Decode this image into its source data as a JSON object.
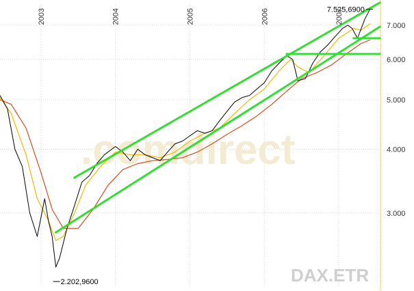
{
  "chart_data": {
    "type": "line",
    "title": "",
    "xlabel": "",
    "ylabel": "",
    "x_tick_labels": [
      "2003",
      "2004",
      "2005",
      "2006",
      "2007"
    ],
    "y_tick_labels": [
      "3.000",
      "4.000",
      "5.000",
      "6.000",
      "7.000"
    ],
    "y_ticks": [
      3000,
      4000,
      5000,
      6000,
      7000
    ],
    "ylim": [
      2150,
      7700
    ],
    "xlim": [
      2002.45,
      2007.55
    ],
    "y_scale": "log",
    "grid": true,
    "legend": "none",
    "annotations": {
      "max_label": "7.525,6900",
      "min_label": "2.202,9600",
      "max_value": 7525.69,
      "min_value": 2202.96,
      "watermark_source": "DAX.ETR",
      "watermark_brand": ".comdirect"
    },
    "series": [
      {
        "kind": "price",
        "color": "#000000",
        "x": [
          2002.45,
          2002.55,
          2002.65,
          2002.75,
          2002.85,
          2002.95,
          2003.05,
          2003.1,
          2003.15,
          2003.2,
          2003.25,
          2003.35,
          2003.45,
          2003.55,
          2003.65,
          2003.75,
          2003.85,
          2003.95,
          2004.0,
          2004.1,
          2004.2,
          2004.3,
          2004.4,
          2004.5,
          2004.6,
          2004.7,
          2004.8,
          2004.9,
          2005.0,
          2005.1,
          2005.2,
          2005.3,
          2005.4,
          2005.5,
          2005.6,
          2005.7,
          2005.8,
          2005.9,
          2006.0,
          2006.1,
          2006.2,
          2006.3,
          2006.38,
          2006.45,
          2006.55,
          2006.65,
          2006.75,
          2006.85,
          2006.95,
          2007.05,
          2007.12,
          2007.18,
          2007.25,
          2007.35,
          2007.42
        ],
        "y": [
          5100,
          4800,
          4000,
          3700,
          3000,
          2700,
          3200,
          2900,
          2700,
          2350,
          2450,
          2800,
          3100,
          3450,
          3550,
          3750,
          3900,
          4000,
          4050,
          3950,
          3800,
          4000,
          3900,
          3850,
          3800,
          3950,
          4100,
          4150,
          4250,
          4350,
          4300,
          4350,
          4550,
          4750,
          4950,
          5050,
          5100,
          5250,
          5400,
          5700,
          5900,
          6100,
          6000,
          5450,
          5500,
          5900,
          6200,
          6400,
          6650,
          6900,
          7000,
          6900,
          6600,
          7200,
          7530
        ]
      },
      {
        "kind": "moving-average-short",
        "color": "#f0b800",
        "x": [
          2002.45,
          2002.6,
          2002.8,
          2002.95,
          2003.1,
          2003.2,
          2003.3,
          2003.45,
          2003.6,
          2003.8,
          2004.0,
          2004.2,
          2004.4,
          2004.6,
          2004.8,
          2005.0,
          2005.2,
          2005.4,
          2005.6,
          2005.8,
          2006.0,
          2006.2,
          2006.35,
          2006.45,
          2006.6,
          2006.8,
          2007.0,
          2007.2,
          2007.3,
          2007.42
        ],
        "y": [
          5050,
          4700,
          3900,
          3200,
          2900,
          2650,
          2700,
          3000,
          3400,
          3700,
          3950,
          3900,
          3900,
          3850,
          3950,
          4150,
          4300,
          4400,
          4700,
          5000,
          5250,
          5700,
          6000,
          5800,
          5650,
          6100,
          6600,
          6900,
          6850,
          7050
        ]
      },
      {
        "kind": "moving-average-long",
        "color": "#d84a1a",
        "x": [
          2002.45,
          2002.6,
          2002.8,
          2003.0,
          2003.15,
          2003.3,
          2003.5,
          2003.7,
          2003.9,
          2004.1,
          2004.3,
          2004.5,
          2004.7,
          2004.9,
          2005.1,
          2005.3,
          2005.5,
          2005.7,
          2005.9,
          2006.1,
          2006.3,
          2006.5,
          2006.7,
          2006.9,
          2007.1,
          2007.3,
          2007.42
        ],
        "y": [
          5000,
          4900,
          4400,
          3600,
          3050,
          2800,
          2800,
          3050,
          3400,
          3650,
          3750,
          3800,
          3820,
          3850,
          3950,
          4100,
          4280,
          4450,
          4650,
          4900,
          5200,
          5500,
          5650,
          5850,
          6150,
          6450,
          6550
        ]
      }
    ],
    "trendlines": [
      {
        "name": "channel-upper",
        "color": "#33dd33",
        "x": [
          2003.45,
          2007.55
        ],
        "y": [
          3520,
          7750
        ]
      },
      {
        "name": "channel-lower",
        "color": "#33dd33",
        "x": [
          2003.2,
          2007.55
        ],
        "y": [
          2750,
          6950
        ]
      },
      {
        "name": "horizontal-upper",
        "color": "#33dd33",
        "x": [
          2007.2,
          2007.55
        ],
        "y": [
          6600,
          6600
        ]
      },
      {
        "name": "horizontal-lower",
        "color": "#33dd33",
        "x": [
          2006.3,
          2007.55
        ],
        "y": [
          6150,
          6150
        ]
      }
    ]
  }
}
